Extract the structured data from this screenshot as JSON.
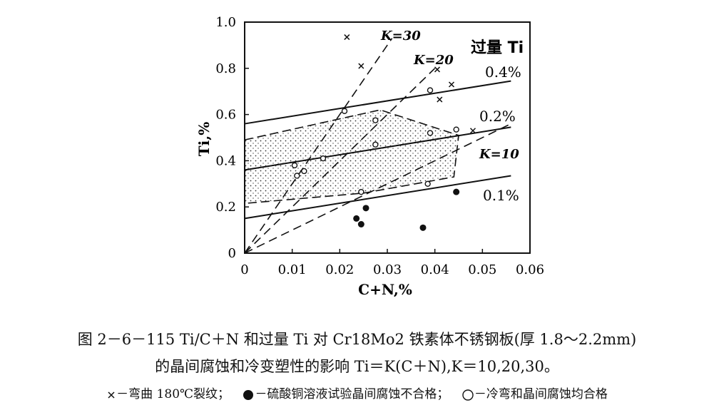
{
  "chart_data": {
    "type": "scatter",
    "xlabel": "C+N,%",
    "ylabel": "Ti,%",
    "xlim": [
      0,
      0.06
    ],
    "ylim": [
      0,
      1.0
    ],
    "x_ticks": [
      "0",
      "0.01",
      "0.02",
      "0.03",
      "0.04",
      "0.05",
      "0.06"
    ],
    "y_ticks": [
      "0",
      "0.2",
      "0.4",
      "0.6",
      "0.8",
      "1.0"
    ],
    "legend_title": "过量 Ti",
    "excess_ti_lines": [
      {
        "name": "0.4%",
        "x": [
          0,
          0.056
        ],
        "y": [
          0.56,
          0.745
        ],
        "style": "solid"
      },
      {
        "name": "0.2%",
        "x": [
          0,
          0.056
        ],
        "y": [
          0.36,
          0.545
        ],
        "style": "solid"
      },
      {
        "name": "0.1%",
        "x": [
          0,
          0.056
        ],
        "y": [
          0.15,
          0.335
        ],
        "style": "solid"
      }
    ],
    "k_lines": [
      {
        "name": "K=30",
        "x": [
          0,
          0.031
        ],
        "y": [
          0,
          0.93
        ]
      },
      {
        "name": "K=20",
        "x": [
          0,
          0.04
        ],
        "y": [
          0,
          0.8
        ]
      },
      {
        "name": "K=10",
        "x": [
          0,
          0.056
        ],
        "y": [
          0,
          0.56
        ]
      }
    ],
    "region_boundary": {
      "x": [
        0.0,
        0.0285,
        0.045,
        0.044,
        0.025,
        0.0
      ],
      "y": [
        0.49,
        0.62,
        0.51,
        0.33,
        0.26,
        0.215
      ]
    },
    "series": [
      {
        "name": "弯曲 180℃裂纹",
        "marker": "x",
        "x": [
          0.0215,
          0.0245,
          0.0405,
          0.041,
          0.0435,
          0.048
        ],
        "y": [
          0.935,
          0.81,
          0.795,
          0.665,
          0.73,
          0.53
        ]
      },
      {
        "name": "硫酸铜溶液试验晶间腐蚀不合格",
        "marker": "filled-circle",
        "x": [
          0.0235,
          0.0245,
          0.0255,
          0.0375,
          0.0445
        ],
        "y": [
          0.15,
          0.125,
          0.195,
          0.11,
          0.265
        ]
      },
      {
        "name": "冷弯和晶间腐蚀均合格",
        "marker": "open-circle",
        "x": [
          0.0105,
          0.011,
          0.0125,
          0.0165,
          0.021,
          0.0245,
          0.0275,
          0.0275,
          0.0385,
          0.039,
          0.039,
          0.0445
        ],
        "y": [
          0.38,
          0.335,
          0.355,
          0.41,
          0.615,
          0.265,
          0.47,
          0.575,
          0.3,
          0.705,
          0.52,
          0.535
        ]
      }
    ]
  },
  "caption": {
    "line1": "图 2－6－115 Ti/C＋N 和过量 Ti 对 Cr18Mo2 铁素体不锈钢板(厚 1.8～2.2mm)",
    "line2": "的晶间腐蚀和冷变塑性的影响 Ti＝K(C＋N),K＝10,20,30。",
    "legend_cross_label": "－弯曲 180℃裂纹；",
    "legend_filled_label": "－硫酸铜溶液试验晶间腐蚀不合格；",
    "legend_open_label": "－冷弯和晶间腐蚀均合格"
  }
}
